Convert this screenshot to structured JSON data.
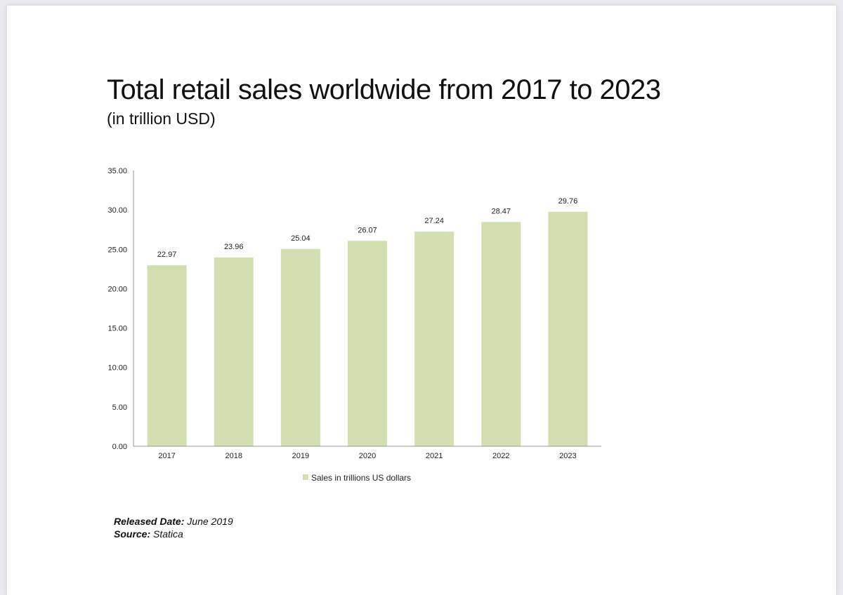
{
  "footer": {
    "released_label": "Released Date:",
    "released_value": "June 2019",
    "source_label": "Source:",
    "source_value": "Statica"
  },
  "chart_data": {
    "type": "bar",
    "title": "Total retail sales worldwide from 2017 to 2023",
    "subtitle": "(in trillion USD)",
    "categories": [
      "2017",
      "2018",
      "2019",
      "2020",
      "2021",
      "2022",
      "2023"
    ],
    "series": [
      {
        "name": "Sales in trillions US dollars",
        "values": [
          22.97,
          23.96,
          25.04,
          26.07,
          27.24,
          28.47,
          29.76
        ],
        "color": "#d3dfb1"
      }
    ],
    "data_labels": [
      "22.97",
      "23.96",
      "25.04",
      "26.07",
      "27.24",
      "28.47",
      "29.76"
    ],
    "y_ticks": [
      "0.00",
      "5.00",
      "10.00",
      "15.00",
      "20.00",
      "25.00",
      "30.00",
      "35.00"
    ],
    "ylim": [
      0,
      35
    ],
    "xlabel": "",
    "ylabel": "",
    "grid": false,
    "legend_position": "bottom"
  }
}
